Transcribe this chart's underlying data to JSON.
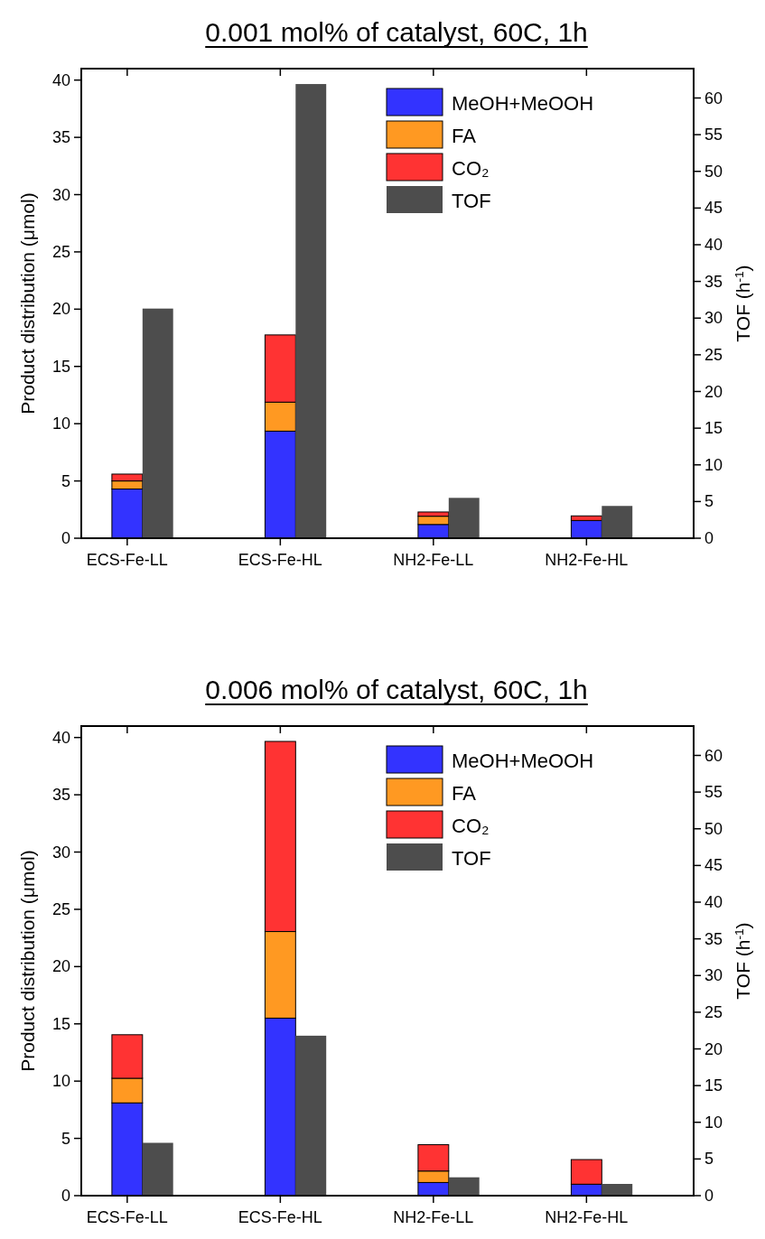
{
  "chart_data": [
    {
      "type": "bar",
      "title": "0.001 mol% of catalyst, 60C, 1h",
      "ylabel": "Product distribution (μmol)",
      "y2label": "TOF (h$^{-1}$)",
      "categories": [
        "ECS-Fe-LL",
        "ECS-Fe-HL",
        "NH2-Fe-LL",
        "NH2-Fe-HL"
      ],
      "stacked": true,
      "legend": "top right",
      "ylim": [
        0,
        41
      ],
      "yticks": [
        0,
        5,
        10,
        15,
        20,
        25,
        30,
        35,
        40
      ],
      "y2lim": [
        0,
        64
      ],
      "y2ticks": [
        0,
        5,
        10,
        15,
        20,
        25,
        30,
        35,
        40,
        45,
        50,
        55,
        60
      ],
      "series": [
        {
          "name": "MeOH+MeOOH",
          "color": "#3333ff",
          "values": [
            4.3,
            9.35,
            1.2,
            1.55
          ]
        },
        {
          "name": "FA",
          "color": "#ff9922",
          "values": [
            0.7,
            2.53,
            0.72,
            0
          ]
        },
        {
          "name": "CO₂",
          "color": "#ff3333",
          "values": [
            0.6,
            5.87,
            0.37,
            0.4
          ]
        },
        {
          "name": "TOF",
          "color": "#4d4d4d",
          "axis": "y2",
          "values": [
            31.3,
            61.9,
            5.5,
            4.4
          ]
        }
      ]
    },
    {
      "type": "bar",
      "title": "0.006 mol% of catalyst, 60C, 1h",
      "ylabel": "Product distribution (μmol)",
      "y2label": "TOF (h$^{-1}$)",
      "categories": [
        "ECS-Fe-LL",
        "ECS-Fe-HL",
        "NH2-Fe-LL",
        "NH2-Fe-HL"
      ],
      "stacked": true,
      "legend": "top right",
      "ylim": [
        0,
        41
      ],
      "yticks": [
        0,
        5,
        10,
        15,
        20,
        25,
        30,
        35,
        40
      ],
      "y2lim": [
        0,
        64
      ],
      "y2ticks": [
        0,
        5,
        10,
        15,
        20,
        25,
        30,
        35,
        40,
        45,
        50,
        55,
        60
      ],
      "series": [
        {
          "name": "MeOH+MeOOH",
          "color": "#3333ff",
          "values": [
            8.1,
            15.5,
            1.15,
            1.0
          ]
        },
        {
          "name": "FA",
          "color": "#ff9922",
          "values": [
            2.15,
            7.56,
            1.0,
            0
          ]
        },
        {
          "name": "CO₂",
          "color": "#ff3333",
          "values": [
            3.8,
            16.6,
            2.3,
            2.15
          ]
        },
        {
          "name": "TOF",
          "color": "#4d4d4d",
          "axis": "y2",
          "values": [
            7.2,
            21.8,
            2.5,
            1.6
          ]
        }
      ]
    }
  ]
}
